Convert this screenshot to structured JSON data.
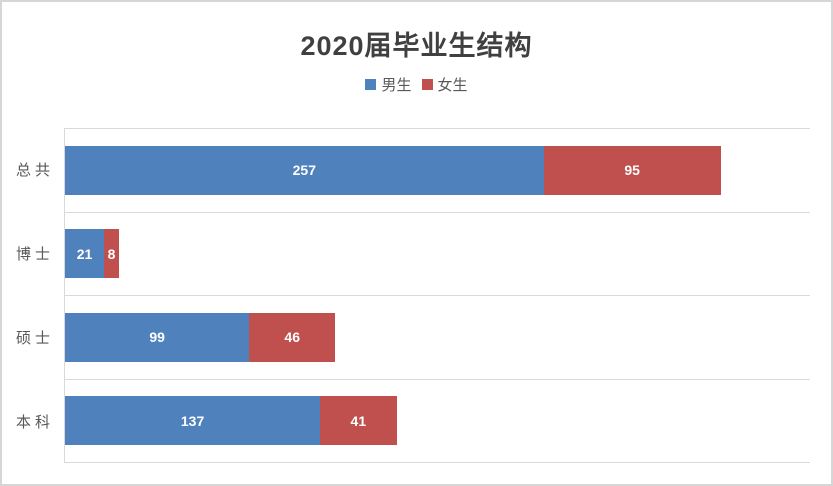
{
  "chart": {
    "title": "2020届毕业生结构"
  },
  "chart_data": {
    "type": "bar",
    "orientation": "horizontal",
    "stacked": true,
    "title": "2020届毕业生结构",
    "categories": [
      "总共",
      "博士",
      "硕士",
      "本科"
    ],
    "series": [
      {
        "key": "male",
        "name": "男生",
        "color": "#4f81bd",
        "values": [
          257,
          21,
          99,
          137
        ]
      },
      {
        "key": "female",
        "name": "女生",
        "color": "#c0504d",
        "values": [
          95,
          8,
          46,
          41
        ]
      }
    ],
    "xlabel": "",
    "ylabel": "",
    "xlim": [
      0,
      400
    ],
    "value_labels": true,
    "value_label_color": "#ffffff",
    "legend_position": "top",
    "grid": "category-band-borders",
    "gridline_color": "#d9d9d9"
  }
}
